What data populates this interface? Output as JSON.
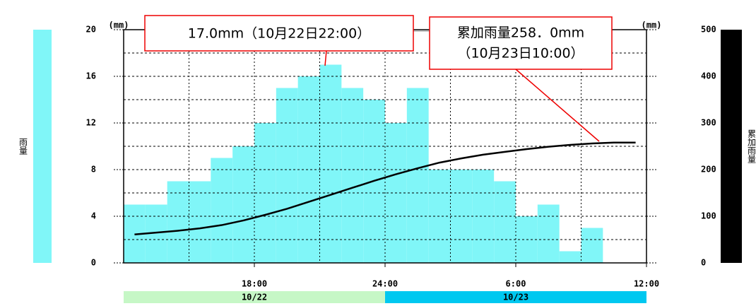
{
  "chart_data": {
    "type": "bar-line",
    "y_label": "雨量",
    "y2_label": "累加雨量",
    "y_unit": "(mm)",
    "y2_unit": "(mm)",
    "xlim": [
      12,
      36
    ],
    "xticks": [
      {
        "value": 18,
        "label": "18:00"
      },
      {
        "value": 24,
        "label": "24:00"
      },
      {
        "value": 30,
        "label": "6:00"
      },
      {
        "value": 36,
        "label": "12:00"
      }
    ],
    "x_minor_ticks": [
      15,
      21,
      27,
      33
    ],
    "ylim": [
      0,
      20
    ],
    "yticks": [
      0,
      4,
      8,
      12,
      16,
      20
    ],
    "y_minor_ticks": [
      2,
      6,
      10,
      14,
      18
    ],
    "y2lim": [
      0,
      500
    ],
    "y2ticks": [
      0,
      100,
      200,
      300,
      400,
      500
    ],
    "grid": true,
    "series": [
      {
        "type": "bar",
        "color": "#80f6f8",
        "bins": [
          12,
          13,
          14,
          15,
          16,
          17,
          18,
          19,
          20,
          21,
          22,
          23,
          24,
          25,
          26,
          27,
          28,
          29,
          30,
          31,
          32,
          33,
          34
        ],
        "values": [
          5,
          5,
          7,
          7,
          9,
          10,
          12,
          15,
          16,
          17,
          15,
          14,
          12,
          15,
          8,
          8,
          8,
          7,
          4,
          5,
          1,
          3
        ]
      },
      {
        "type": "line",
        "axis": "y2",
        "color": "#000000",
        "x": [
          12.5,
          13.5,
          14.5,
          15.5,
          16.5,
          17.5,
          18.5,
          19.5,
          20.5,
          21.5,
          22.5,
          23.5,
          24.5,
          25.5,
          26.5,
          27.5,
          28.5,
          29.5,
          30.5,
          31.5,
          32.5,
          33.5,
          34.5,
          35.5
        ],
        "values": [
          61,
          65,
          69,
          74,
          81,
          91,
          103,
          116,
          131,
          146,
          161,
          176,
          190,
          203,
          215,
          224,
          232,
          238,
          244,
          249,
          253,
          256,
          258,
          258
        ]
      }
    ],
    "date_bands": [
      {
        "label": "10/22",
        "color": "#c6f7c6",
        "range": [
          12,
          24
        ]
      },
      {
        "label": "10/23",
        "color": "#00c8f0",
        "range": [
          24,
          36
        ]
      }
    ],
    "annotations": [
      "17.0mm（10月22日22:00）",
      "累加雨量258．0mm",
      "（10月23日10:00）"
    ]
  }
}
